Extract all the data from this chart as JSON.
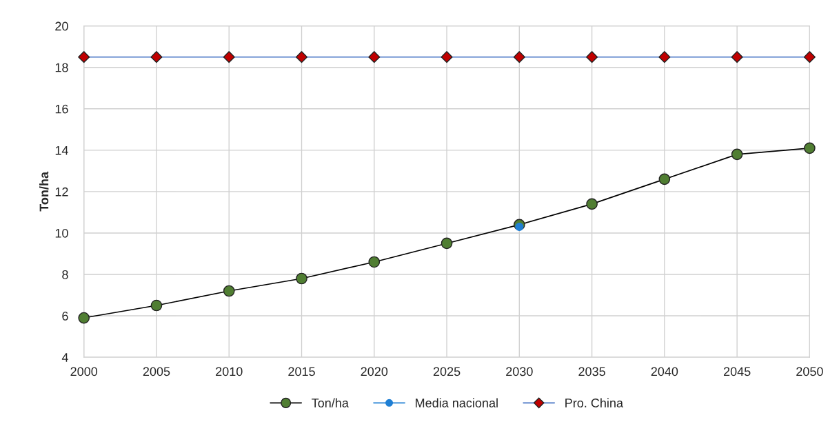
{
  "chart_data": {
    "type": "line",
    "ylabel": "Ton/ha",
    "x": [
      2000,
      2005,
      2010,
      2015,
      2020,
      2025,
      2030,
      2035,
      2040,
      2045,
      2050
    ],
    "series": [
      {
        "name": "Ton/ha",
        "color": "#000000",
        "colors": [
          "#507e32",
          "#507e32",
          "#507e32",
          "#507e32",
          "#507e32",
          "#507e32",
          "#507e32",
          "#507e32",
          "#507e32",
          "#507e32",
          "#507e32"
        ],
        "marker": "circle",
        "values": [
          5.9,
          6.5,
          7.2,
          7.8,
          8.6,
          9.5,
          10.4,
          11.4,
          12.6,
          13.8,
          14.1
        ]
      },
      {
        "name": "Media nacional",
        "color": "#1f7fd4",
        "marker": "circle",
        "values": [
          null,
          null,
          null,
          null,
          null,
          null,
          10.3,
          null,
          null,
          null,
          null
        ]
      },
      {
        "name": "Pro. China",
        "color": "#4472c4",
        "colors": [
          "#c00000",
          "#c00000",
          "#c00000",
          "#c00000",
          "#c00000",
          "#c00000",
          "#c00000",
          "#c00000",
          "#c00000",
          "#c00000",
          "#c00000"
        ],
        "marker": "diamond",
        "values": [
          18.5,
          18.5,
          18.5,
          18.5,
          18.5,
          18.5,
          18.5,
          18.5,
          18.5,
          18.5,
          18.5
        ]
      }
    ],
    "xlim": [
      2000,
      2050
    ],
    "xticks": [
      2000,
      2005,
      2010,
      2015,
      2020,
      2025,
      2030,
      2035,
      2040,
      2045,
      2050
    ],
    "ylim": [
      4,
      20
    ],
    "yticks": [
      4,
      6,
      8,
      10,
      12,
      14,
      16,
      18,
      20
    ],
    "grid": true,
    "legend": "bottom"
  }
}
